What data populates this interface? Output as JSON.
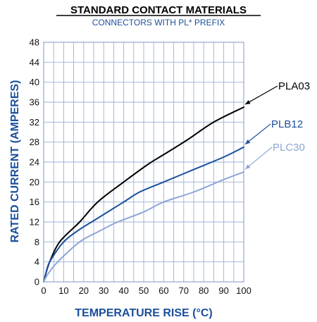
{
  "chart_data": {
    "type": "line",
    "title": "STANDARD CONTACT MATERIALS",
    "subtitle": "CONNECTORS WITH PL* PREFIX",
    "xlabel": "TEMPERATURE RISE (°C)",
    "ylabel": "RATED CURRENT (AMPERES)",
    "xlim": [
      0,
      100
    ],
    "ylim": [
      0,
      48
    ],
    "xticks": [
      0,
      10,
      20,
      30,
      40,
      50,
      60,
      70,
      80,
      90,
      100
    ],
    "yticks": [
      0,
      4,
      8,
      12,
      16,
      20,
      24,
      28,
      32,
      36,
      40,
      44,
      48
    ],
    "grid": true,
    "series": [
      {
        "name": "PLA03",
        "color": "#000000",
        "x": [
          0,
          1,
          3,
          8,
          18,
          27,
          40,
          52,
          60,
          72,
          85,
          100
        ],
        "y": [
          0,
          1.5,
          4,
          8,
          12,
          16,
          20,
          23.5,
          25.5,
          28.5,
          32,
          35
        ]
      },
      {
        "name": "PLB12",
        "color": "#1a4f9c",
        "x": [
          0,
          1,
          3,
          10,
          18,
          26,
          40,
          48,
          60,
          75,
          90,
          100
        ],
        "y": [
          0,
          1.5,
          4,
          8,
          10.5,
          12.5,
          16,
          18,
          20,
          22.5,
          25,
          27
        ]
      },
      {
        "name": "PLC30",
        "color": "#8da6d6",
        "x": [
          0,
          2,
          7,
          18,
          27,
          37,
          50,
          60,
          75,
          90,
          100
        ],
        "y": [
          0,
          1.5,
          4,
          8,
          10,
          12,
          14,
          16,
          18,
          20.5,
          22
        ]
      }
    ]
  }
}
